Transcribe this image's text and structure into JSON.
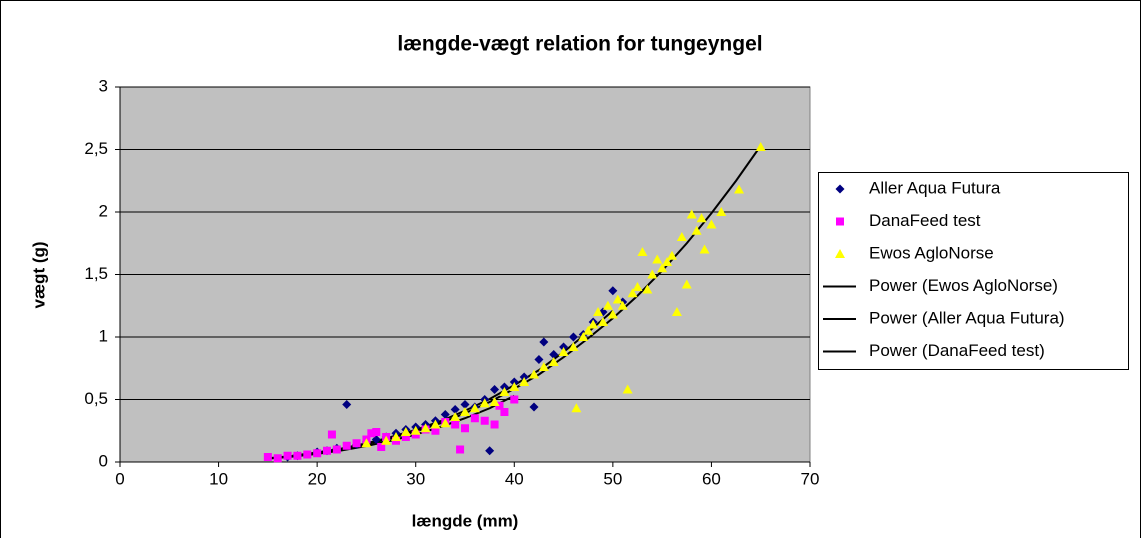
{
  "chart_data": {
    "type": "scatter",
    "title": "længde-vægt relation for tungeyngel",
    "xlabel": "længde (mm)",
    "ylabel": "vægt (g)",
    "xlim": [
      0,
      70
    ],
    "xticks": [
      0,
      10,
      20,
      30,
      40,
      50,
      60,
      70
    ],
    "ylim": [
      0,
      3
    ],
    "yticks": [
      0,
      {
        "value": 0.5,
        "label": "0,5"
      },
      1,
      {
        "value": 1.5,
        "label": "1,5"
      },
      2,
      {
        "value": 2.5,
        "label": "2,5"
      },
      3
    ],
    "grid": true,
    "legend": "right",
    "series": [
      {
        "name": "Aller Aqua Futura",
        "color": "#000080",
        "style": "diamond",
        "x": [
          17,
          18,
          20,
          21,
          22,
          23,
          24,
          25,
          26,
          27,
          28,
          29,
          30,
          31,
          32,
          33,
          34,
          35,
          36,
          37,
          37.5,
          38,
          39,
          40,
          41,
          42,
          42.5,
          43,
          44,
          45,
          46,
          47,
          48,
          49,
          50,
          51
        ],
        "values": [
          0.04,
          0.05,
          0.08,
          0.09,
          0.11,
          0.46,
          0.14,
          0.16,
          0.18,
          0.2,
          0.23,
          0.26,
          0.28,
          0.3,
          0.33,
          0.38,
          0.42,
          0.46,
          0.44,
          0.5,
          0.09,
          0.58,
          0.6,
          0.64,
          0.68,
          0.44,
          0.82,
          0.96,
          0.86,
          0.92,
          1.0,
          1.02,
          1.12,
          1.2,
          1.37,
          1.28
        ]
      },
      {
        "name": "DanaFeed test",
        "color": "#ff00ff",
        "style": "square",
        "x": [
          15,
          16,
          17,
          18,
          19,
          20,
          21,
          21.5,
          22,
          23,
          24,
          25,
          25.5,
          26,
          26.5,
          27,
          28,
          29,
          30,
          31,
          32,
          33,
          34,
          34.5,
          35,
          36,
          37,
          38,
          38.5,
          39,
          40
        ],
        "values": [
          0.04,
          0.03,
          0.05,
          0.05,
          0.06,
          0.07,
          0.09,
          0.22,
          0.1,
          0.13,
          0.15,
          0.18,
          0.23,
          0.24,
          0.12,
          0.2,
          0.17,
          0.2,
          0.22,
          0.26,
          0.25,
          0.32,
          0.3,
          0.1,
          0.27,
          0.35,
          0.33,
          0.3,
          0.45,
          0.4,
          0.5
        ]
      },
      {
        "name": "Ewos AgloNorse",
        "color": "#ffff00",
        "style": "triangle",
        "x": [
          25,
          27,
          28,
          29,
          30,
          31,
          32,
          33,
          34,
          35,
          36,
          37,
          38,
          39,
          40,
          41,
          42,
          43,
          44,
          45,
          46,
          46.3,
          47,
          47.5,
          48,
          48.5,
          49,
          49.5,
          50,
          50.5,
          51,
          51.5,
          52,
          52.5,
          53,
          53.5,
          54,
          54.5,
          55,
          55.5,
          56,
          56.5,
          57,
          57.5,
          58,
          58.5,
          59,
          59.3,
          60,
          61,
          62.8,
          65
        ],
        "values": [
          0.15,
          0.17,
          0.2,
          0.24,
          0.25,
          0.27,
          0.3,
          0.31,
          0.36,
          0.4,
          0.43,
          0.47,
          0.48,
          0.56,
          0.6,
          0.64,
          0.7,
          0.76,
          0.8,
          0.88,
          0.92,
          0.43,
          1.0,
          1.05,
          1.1,
          1.2,
          1.12,
          1.25,
          1.18,
          1.3,
          1.25,
          0.58,
          1.35,
          1.4,
          1.68,
          1.38,
          1.5,
          1.62,
          1.55,
          1.6,
          1.65,
          1.2,
          1.8,
          1.42,
          1.98,
          1.85,
          1.95,
          1.7,
          1.9,
          2.0,
          2.18,
          2.52
        ]
      },
      {
        "name": "Power (Ewos AgloNorse)",
        "color": "#000000",
        "style": "line",
        "x": [
          15,
          17.5,
          20,
          22.5,
          25,
          27.5,
          30,
          32.5,
          35,
          37.5,
          40,
          42.5,
          45,
          47.5,
          50,
          52.5,
          55,
          57.5,
          60,
          62.5,
          65
        ],
        "values": [
          0.03,
          0.048,
          0.072,
          0.103,
          0.142,
          0.19,
          0.245,
          0.31,
          0.39,
          0.48,
          0.586,
          0.7,
          0.838,
          0.99,
          1.15,
          1.33,
          1.53,
          1.75,
          1.99,
          2.25,
          2.53
        ]
      },
      {
        "name": "Power (Aller Aqua Futura)",
        "color": "#000000",
        "style": "line",
        "x": [
          17.5,
          20,
          22.5,
          25,
          27.5,
          30,
          32.5,
          35,
          37.5,
          40,
          42.5,
          45,
          47.5,
          50
        ],
        "values": [
          0.05,
          0.076,
          0.108,
          0.149,
          0.2,
          0.257,
          0.326,
          0.41,
          0.504,
          0.615,
          0.735,
          0.88,
          1.04,
          1.21
        ]
      },
      {
        "name": "Power (DanaFeed test)",
        "color": "#000000",
        "style": "line",
        "x": [
          15,
          17.5,
          20,
          22.5,
          25,
          27.5,
          30,
          32.5,
          35,
          37.5,
          40
        ],
        "values": [
          0.027,
          0.043,
          0.065,
          0.093,
          0.128,
          0.171,
          0.22,
          0.28,
          0.35,
          0.43,
          0.53
        ]
      }
    ]
  }
}
